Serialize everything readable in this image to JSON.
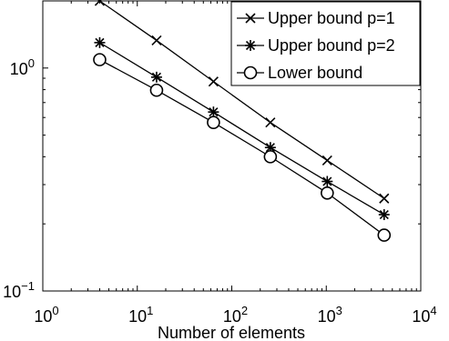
{
  "chart_data": {
    "type": "line",
    "title": "",
    "xlabel": "Number of elements",
    "ylabel": "",
    "xscale": "log",
    "yscale": "log",
    "xlim": [
      1,
      10000
    ],
    "ylim": [
      0.1,
      2
    ],
    "grid": false,
    "legend_position": "top-right",
    "x_tick_labels": [
      {
        "base": "10",
        "exp": "0",
        "value": 1
      },
      {
        "base": "10",
        "exp": "1",
        "value": 10
      },
      {
        "base": "10",
        "exp": "2",
        "value": 100
      },
      {
        "base": "10",
        "exp": "3",
        "value": 1000
      },
      {
        "base": "10",
        "exp": "4",
        "value": 10000
      }
    ],
    "y_tick_labels": [
      {
        "base": "10",
        "exp": "−1",
        "value": 0.1
      },
      {
        "base": "10",
        "exp": "0",
        "value": 1
      }
    ],
    "x": [
      4,
      16,
      64,
      256,
      1024,
      4096
    ],
    "series": [
      {
        "name": "Upper bound p=1",
        "marker": "x",
        "color": "#000000",
        "values": [
          2.0,
          1.33,
          0.87,
          0.57,
          0.385,
          0.26
        ]
      },
      {
        "name": "Upper bound p=2",
        "marker": "asterisk",
        "color": "#000000",
        "values": [
          1.3,
          0.91,
          0.635,
          0.44,
          0.31,
          0.22
        ]
      },
      {
        "name": "Lower bound",
        "marker": "circle",
        "color": "#000000",
        "values": [
          1.09,
          0.795,
          0.57,
          0.4,
          0.275,
          0.178
        ]
      }
    ]
  }
}
